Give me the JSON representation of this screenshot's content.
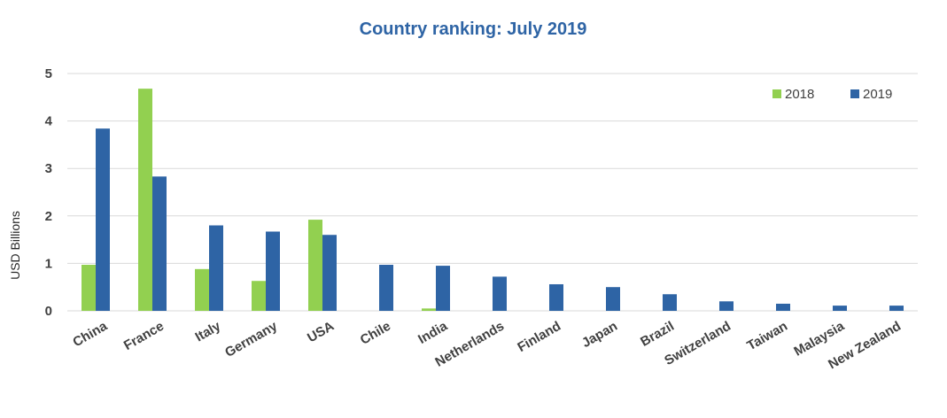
{
  "chart_data": {
    "type": "bar",
    "title": "Country ranking: July 2019",
    "xlabel": "",
    "ylabel": "USD Billions",
    "ylim": [
      0,
      5
    ],
    "yticks": [
      0,
      1,
      2,
      3,
      4,
      5
    ],
    "grid": true,
    "legend_position": "top-right",
    "categories": [
      "China",
      "France",
      "Italy",
      "Germany",
      "USA",
      "Chile",
      "India",
      "Netherlands",
      "Finland",
      "Japan",
      "Brazil",
      "Switzerland",
      "Taiwan",
      "Malaysia",
      "New Zealand"
    ],
    "series": [
      {
        "name": "2018",
        "color": "#92d050",
        "values": [
          0.97,
          4.68,
          0.88,
          0.63,
          1.92,
          0,
          0.05,
          0,
          0,
          0,
          0,
          0,
          0,
          0,
          0
        ]
      },
      {
        "name": "2019",
        "color": "#2e64a5",
        "values": [
          3.84,
          2.83,
          1.8,
          1.67,
          1.6,
          0.97,
          0.95,
          0.72,
          0.56,
          0.5,
          0.35,
          0.2,
          0.15,
          0.11,
          0.11
        ]
      }
    ],
    "title_color": "#2e64a5"
  }
}
